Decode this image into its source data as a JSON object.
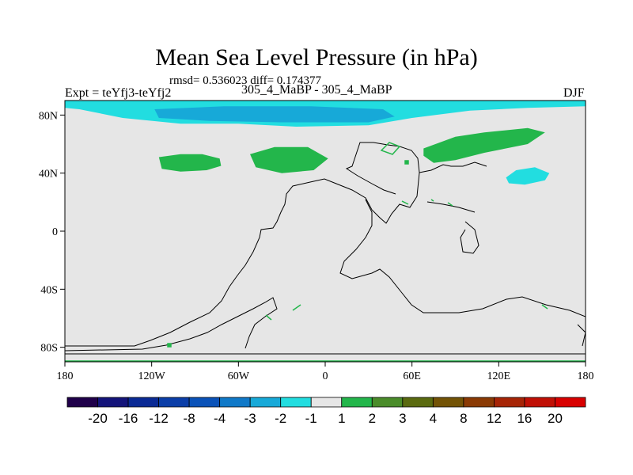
{
  "header": {
    "title": "Mean Sea Level Pressure (in hPa)",
    "stats": "rmsd= 0.536023 diff= 0.174377",
    "expt": "Expt = teYfj3-teYfj2",
    "pair": "305_4_MaBP - 305_4_MaBP",
    "season": "DJF"
  },
  "chart_data": {
    "type": "heatmap",
    "title": "Mean Sea Level Pressure (in hPa)",
    "subtitle": "305_4_MaBP - 305_4_MaBP",
    "annotation_left": "Expt = teYfj3-teYfj2",
    "annotation_right": "DJF",
    "statistics": {
      "rmsd": 0.536023,
      "diff": 0.174377
    },
    "xlim": [
      -180,
      180
    ],
    "ylim": [
      -90,
      90
    ],
    "x_ticks": [
      {
        "value": -180,
        "label": "180"
      },
      {
        "value": -120,
        "label": "120W"
      },
      {
        "value": -60,
        "label": "60W"
      },
      {
        "value": 0,
        "label": "0"
      },
      {
        "value": 60,
        "label": "60E"
      },
      {
        "value": 120,
        "label": "120E"
      },
      {
        "value": 180,
        "label": "180"
      }
    ],
    "y_ticks": [
      {
        "value": 80,
        "label": "80N"
      },
      {
        "value": 40,
        "label": "40N"
      },
      {
        "value": 0,
        "label": "0"
      },
      {
        "value": -40,
        "label": "40S"
      },
      {
        "value": -80,
        "label": "80S"
      }
    ],
    "colorbar": {
      "levels": [
        "-20",
        "-16",
        "-12",
        "-8",
        "-4",
        "-3",
        "-2",
        "-1",
        "1",
        "2",
        "3",
        "4",
        "8",
        "12",
        "16",
        "20"
      ],
      "colors": [
        "#20004a",
        "#14147a",
        "#0a2a95",
        "#0b3ea8",
        "#0a52b8",
        "#1079c8",
        "#17a9d8",
        "#22dde0",
        "#e6e6e6",
        "#23b64b",
        "#4a8c2a",
        "#5a6a10",
        "#735306",
        "#8a3a04",
        "#a62406",
        "#c01005",
        "#d80000"
      ]
    },
    "regions": [
      {
        "name": "Arctic low band",
        "bin": "-2 to -1",
        "color": "#22dde0",
        "polygon": [
          [
            -180,
            90
          ],
          [
            180,
            90
          ],
          [
            180,
            86
          ],
          [
            140,
            85
          ],
          [
            100,
            83
          ],
          [
            60,
            78
          ],
          [
            30,
            73
          ],
          [
            -20,
            72
          ],
          [
            -60,
            74
          ],
          [
            -100,
            74
          ],
          [
            -140,
            78
          ],
          [
            -170,
            84
          ],
          [
            -180,
            85
          ]
        ]
      },
      {
        "name": "Arctic low core",
        "bin": "-3 to -2",
        "color": "#17a9d8",
        "polygon": [
          [
            -118,
            84
          ],
          [
            -70,
            86
          ],
          [
            -10,
            86
          ],
          [
            40,
            84
          ],
          [
            48,
            79
          ],
          [
            30,
            75
          ],
          [
            -30,
            75
          ],
          [
            -80,
            76
          ],
          [
            -115,
            78
          ]
        ]
      },
      {
        "name": "North Pacific high",
        "bin": "1 to 2",
        "color": "#23b64b",
        "polygon": [
          [
            -115,
            51
          ],
          [
            -100,
            53
          ],
          [
            -85,
            53
          ],
          [
            -73,
            50
          ],
          [
            -72,
            45
          ],
          [
            -82,
            42
          ],
          [
            -100,
            41
          ],
          [
            -113,
            43
          ]
        ]
      },
      {
        "name": "North Atlantic high",
        "bin": "1 to 2",
        "color": "#23b64b",
        "polygon": [
          [
            -52,
            53
          ],
          [
            -35,
            58
          ],
          [
            -12,
            58
          ],
          [
            2,
            50
          ],
          [
            -8,
            42
          ],
          [
            -30,
            40
          ],
          [
            -48,
            44
          ]
        ]
      },
      {
        "name": "Asian high",
        "bin": "1 to 2",
        "color": "#23b64b",
        "polygon": [
          [
            68,
            57
          ],
          [
            90,
            65
          ],
          [
            110,
            68
          ],
          [
            140,
            71
          ],
          [
            152,
            68
          ],
          [
            140,
            60
          ],
          [
            110,
            54
          ],
          [
            90,
            49
          ],
          [
            75,
            47
          ],
          [
            68,
            52
          ]
        ]
      },
      {
        "name": "NW Pacific low",
        "bin": "-2 to -1",
        "color": "#22dde0",
        "polygon": [
          [
            125,
            37
          ],
          [
            132,
            42
          ],
          [
            145,
            44
          ],
          [
            155,
            40
          ],
          [
            152,
            35
          ],
          [
            138,
            32
          ],
          [
            127,
            33
          ]
        ]
      }
    ]
  }
}
